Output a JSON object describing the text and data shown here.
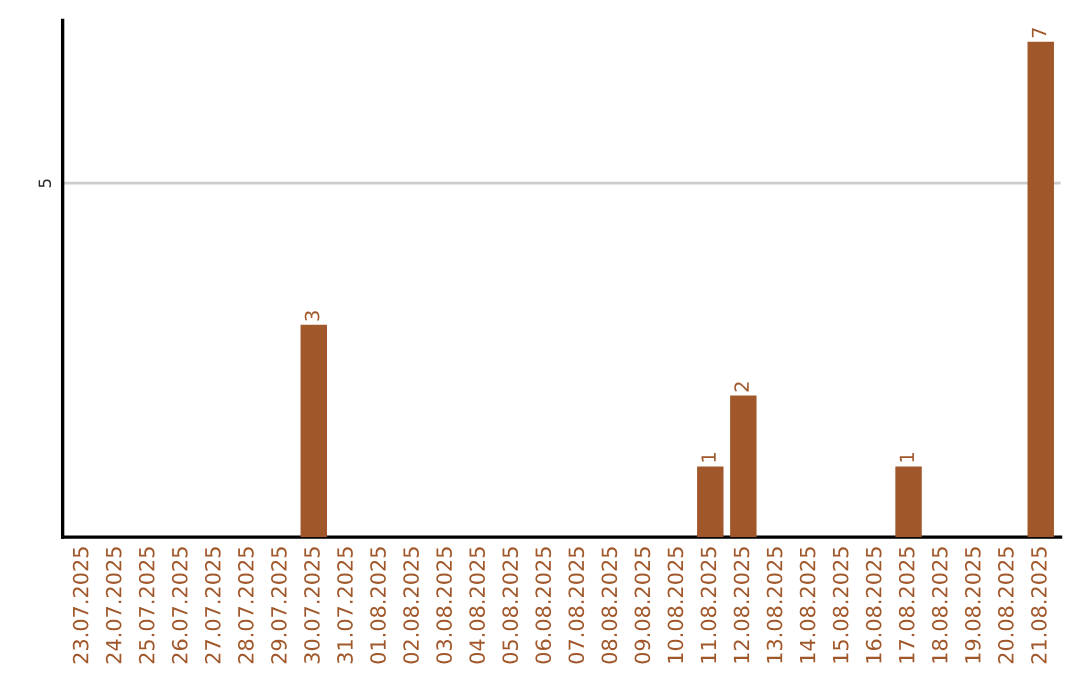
{
  "chart_data": {
    "type": "bar",
    "categories": [
      "23.07.2025",
      "24.07.2025",
      "25.07.2025",
      "26.07.2025",
      "27.07.2025",
      "28.07.2025",
      "29.07.2025",
      "30.07.2025",
      "31.07.2025",
      "01.08.2025",
      "02.08.2025",
      "03.08.2025",
      "04.08.2025",
      "05.08.2025",
      "06.08.2025",
      "07.08.2025",
      "08.08.2025",
      "09.08.2025",
      "10.08.2025",
      "11.08.2025",
      "12.08.2025",
      "13.08.2025",
      "14.08.2025",
      "15.08.2025",
      "16.08.2025",
      "17.08.2025",
      "18.08.2025",
      "19.08.2025",
      "20.08.2025",
      "21.08.2025"
    ],
    "values": [
      0,
      0,
      0,
      0,
      0,
      0,
      0,
      3,
      0,
      0,
      0,
      0,
      0,
      0,
      0,
      0,
      0,
      0,
      0,
      1,
      2,
      0,
      0,
      0,
      0,
      1,
      0,
      0,
      0,
      7
    ],
    "value_labels": [
      null,
      null,
      null,
      null,
      null,
      null,
      null,
      "3",
      null,
      null,
      null,
      null,
      null,
      null,
      null,
      null,
      null,
      null,
      null,
      "1",
      "2",
      null,
      null,
      null,
      null,
      "1",
      null,
      null,
      null,
      "7"
    ],
    "color": "#a0572a",
    "ylim": [
      0,
      7.3
    ],
    "yticks": [
      5
    ],
    "grid": "y",
    "legend": false
  }
}
